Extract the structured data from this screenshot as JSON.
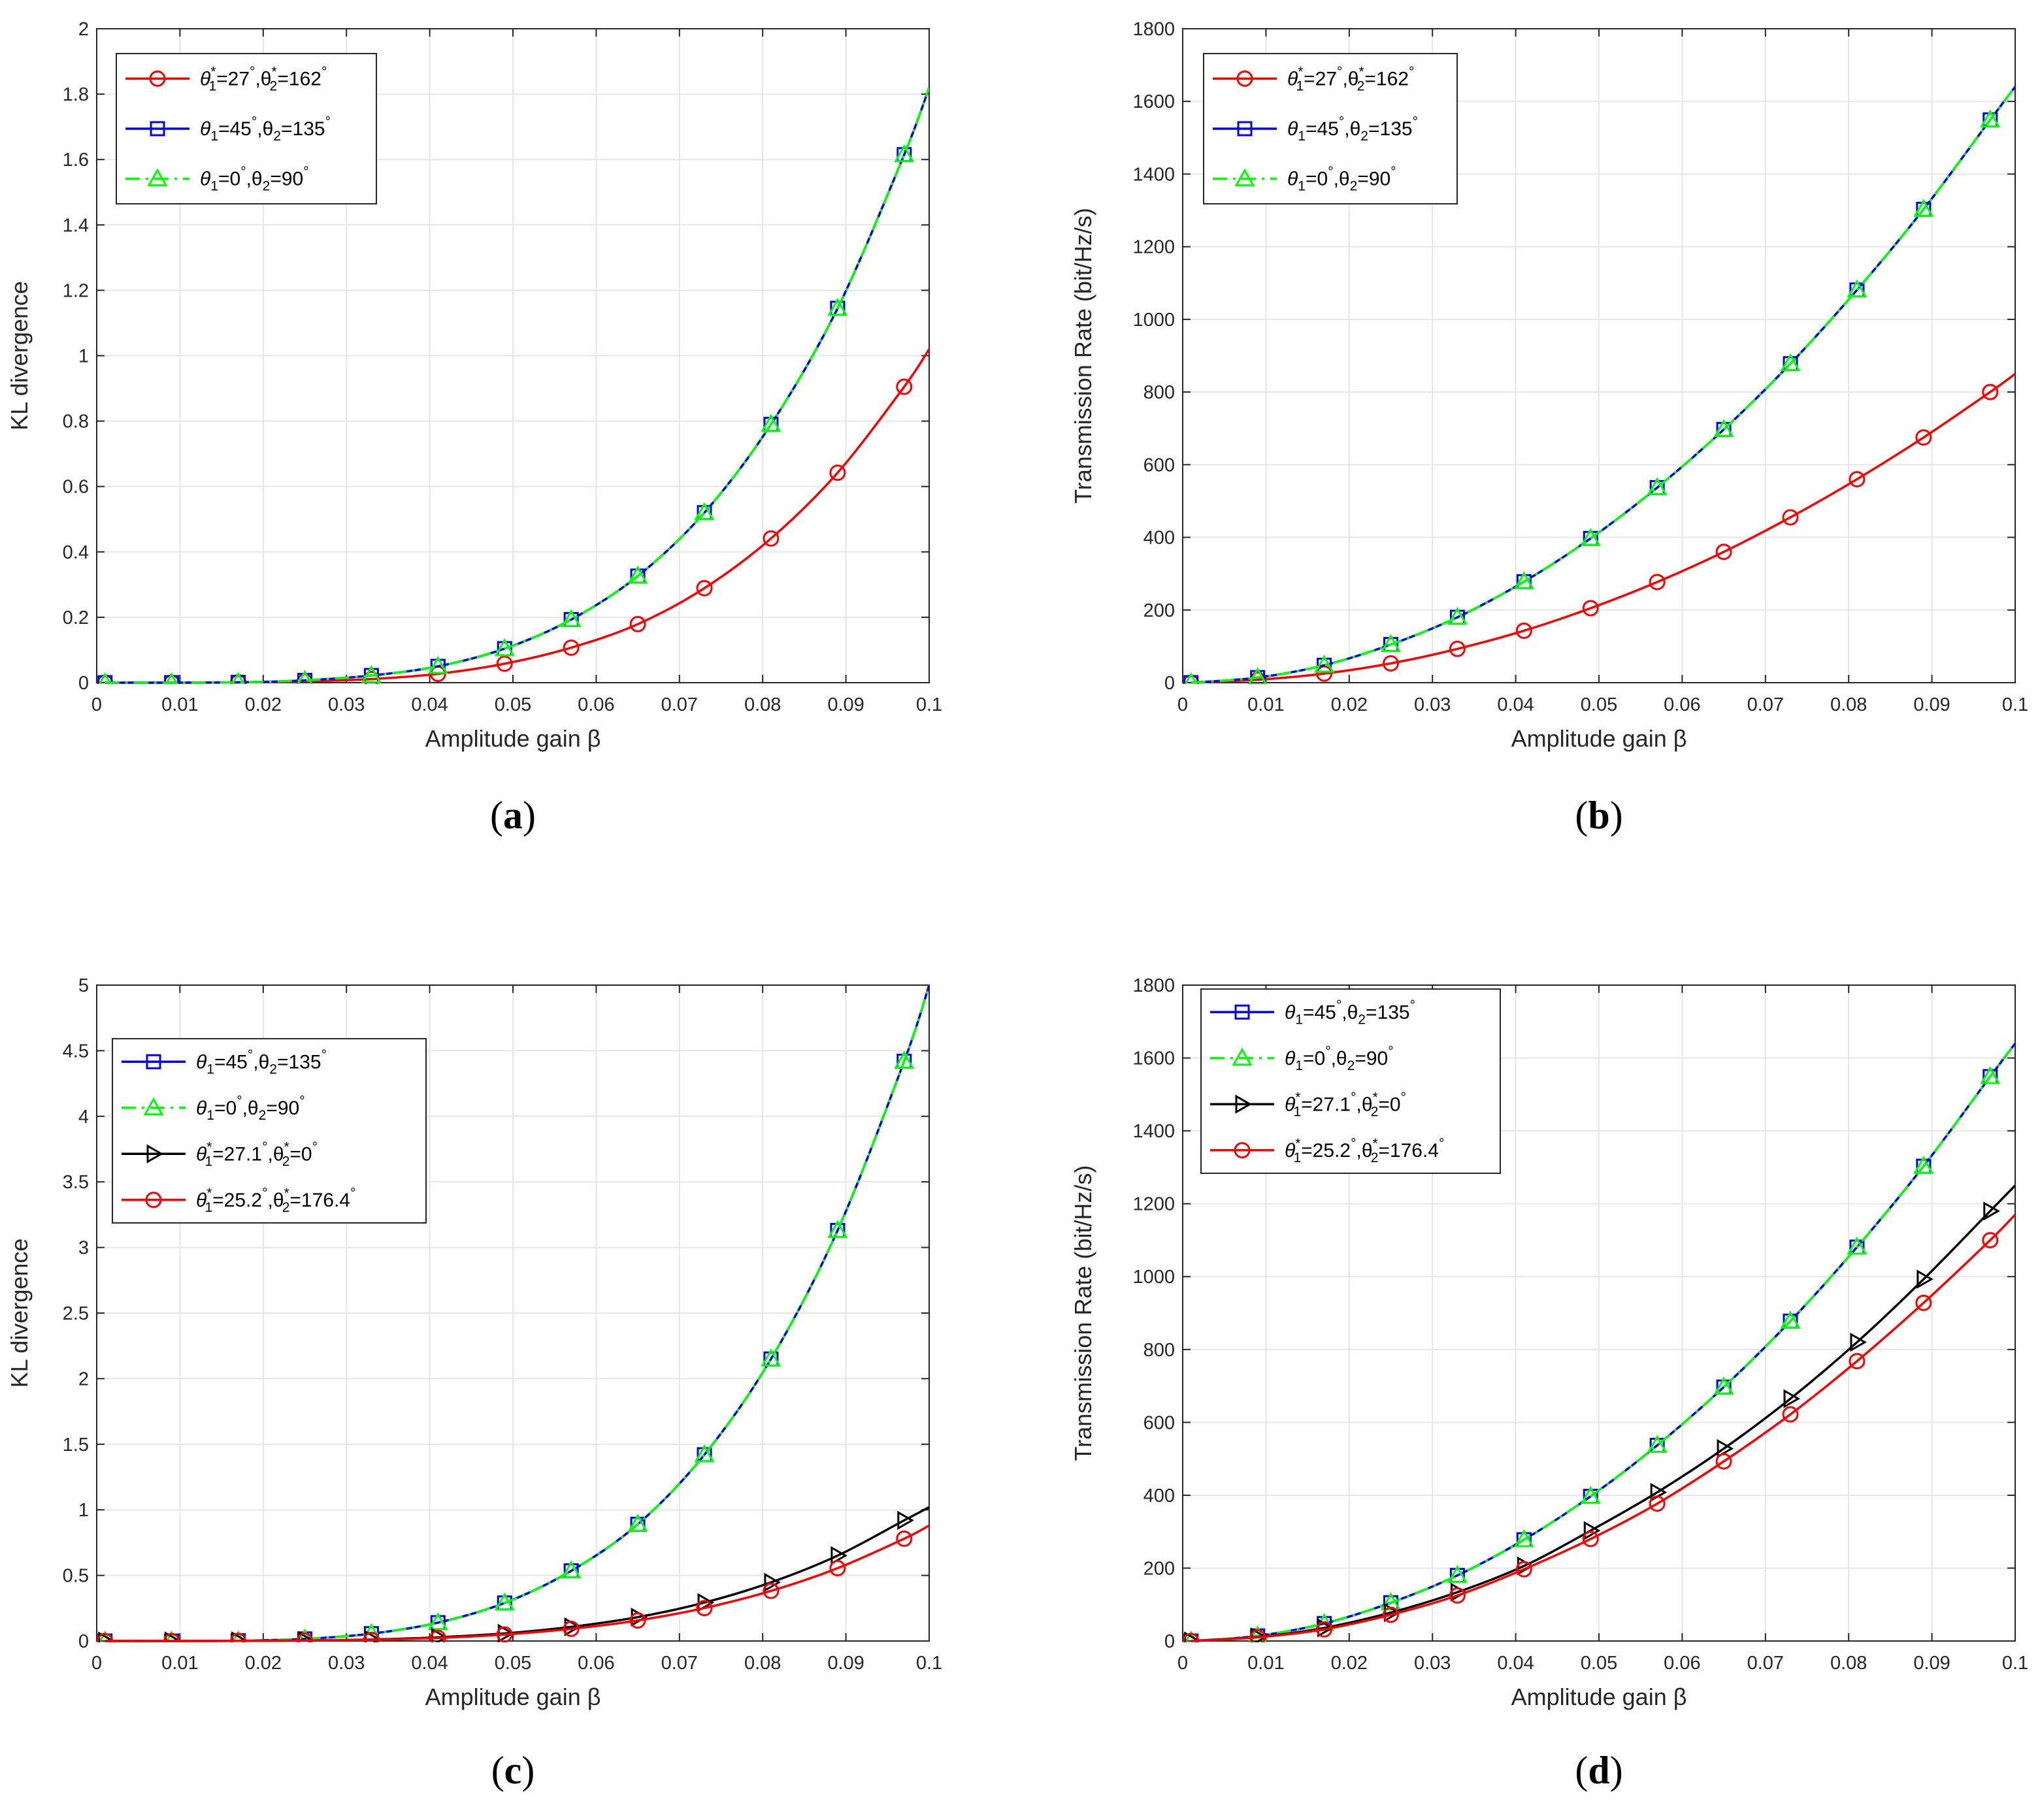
{
  "chart_data": [
    {
      "type": "line",
      "panel_label": "a",
      "x": [
        0.001,
        0.009,
        0.017,
        0.025,
        0.033,
        0.041,
        0.049,
        0.057,
        0.065,
        0.073,
        0.081,
        0.089,
        0.097
      ],
      "xlabel": "Amplitude gain β",
      "ylabel": "KL divergence",
      "xlim": [
        0,
        0.1
      ],
      "ylim": [
        0,
        2
      ],
      "xticks": [
        "0",
        "0.01",
        "0.02",
        "0.03",
        "0.04",
        "0.05",
        "0.06",
        "0.07",
        "0.08",
        "0.09",
        "0.1"
      ],
      "yticks": [
        "0",
        "0.2",
        "0.4",
        "0.6",
        "0.8",
        "1",
        "1.2",
        "1.4",
        "1.6",
        "1.8",
        "2"
      ],
      "grid": true,
      "legend_position": "top-left",
      "series": [
        {
          "name": "θ*₁=27°,θ*₂=162°",
          "legend": {
            "a": "θ",
            "a_sup": "*",
            "a_sub": "1",
            "a_val": "=27",
            "b": ",θ",
            "b_sup": "*",
            "b_sub": "2",
            "b_val": "=162"
          },
          "color": "#ff0000",
          "dash": "solid",
          "marker": "circle",
          "values": [
            0,
            0,
            0.001,
            0.004,
            0.011,
            0.027,
            0.058,
            0.107,
            0.179,
            0.289,
            0.441,
            0.642,
            0.905
          ],
          "end_value": 1.02
        },
        {
          "name": "θ₁=45°,θ₂=135°",
          "legend": {
            "a": "θ",
            "a_sup": "",
            "a_sub": "1",
            "a_val": "=45",
            "b": ",θ",
            "b_sup": "",
            "b_sub": "2",
            "b_val": "=135"
          },
          "color": "#0000ff",
          "dash": "solid",
          "marker": "square",
          "values": [
            0,
            0,
            0.001,
            0.007,
            0.022,
            0.05,
            0.104,
            0.193,
            0.326,
            0.52,
            0.79,
            1.145,
            1.615
          ],
          "end_value": 1.82
        },
        {
          "name": "θ₁=0°,θ₂=90°",
          "legend": {
            "a": "θ",
            "a_sup": "",
            "a_sub": "1",
            "a_val": "=0",
            "b": ",θ",
            "b_sup": "",
            "b_sub": "2",
            "b_val": "=90"
          },
          "color": "#00ff00",
          "dash": "dashdot",
          "marker": "triangle",
          "values": [
            0,
            0,
            0.001,
            0.007,
            0.022,
            0.05,
            0.104,
            0.193,
            0.326,
            0.52,
            0.79,
            1.145,
            1.615
          ],
          "end_value": 1.82
        }
      ]
    },
    {
      "type": "line",
      "panel_label": "b",
      "x": [
        0.001,
        0.009,
        0.017,
        0.025,
        0.033,
        0.041,
        0.049,
        0.057,
        0.065,
        0.073,
        0.081,
        0.089,
        0.097
      ],
      "xlabel": "Amplitude gain β",
      "ylabel": "Transmission Rate (bit/Hz/s)",
      "xlim": [
        0,
        0.1
      ],
      "ylim": [
        0,
        1800
      ],
      "xticks": [
        "0",
        "0.01",
        "0.02",
        "0.03",
        "0.04",
        "0.05",
        "0.06",
        "0.07",
        "0.08",
        "0.09",
        "0.1"
      ],
      "yticks": [
        "0",
        "200",
        "400",
        "600",
        "800",
        "1000",
        "1200",
        "1400",
        "1600",
        "1800"
      ],
      "grid": true,
      "legend_position": "top-left",
      "series": [
        {
          "name": "θ*₁=27°,θ*₂=162°",
          "legend": {
            "a": "θ",
            "a_sup": "*",
            "a_sub": "1",
            "a_val": "=27",
            "b": ",θ",
            "b_sup": "*",
            "b_sub": "2",
            "b_val": "=162"
          },
          "color": "#ff0000",
          "dash": "solid",
          "marker": "circle",
          "values": [
            0,
            8,
            25,
            53,
            93,
            143,
            205,
            277,
            360,
            455,
            560,
            675,
            800
          ],
          "end_value": 850
        },
        {
          "name": "θ₁=45°,θ₂=135°",
          "legend": {
            "a": "θ",
            "a_sup": "",
            "a_sub": "1",
            "a_val": "=45",
            "b": ",θ",
            "b_sup": "",
            "b_sub": "2",
            "b_val": "=135"
          },
          "color": "#0000ff",
          "dash": "solid",
          "marker": "square",
          "values": [
            0,
            14,
            48,
            105,
            180,
            278,
            397,
            537,
            697,
            878,
            1081,
            1303,
            1549
          ],
          "end_value": 1640
        },
        {
          "name": "θ₁=0°,θ₂=90°",
          "legend": {
            "a": "θ",
            "a_sup": "",
            "a_sub": "1",
            "a_val": "=0",
            "b": ",θ",
            "b_sup": "",
            "b_sub": "2",
            "b_val": "=90"
          },
          "color": "#00ff00",
          "dash": "dashdot",
          "marker": "triangle",
          "values": [
            0,
            14,
            48,
            105,
            180,
            278,
            397,
            537,
            697,
            878,
            1081,
            1303,
            1549
          ],
          "end_value": 1640
        }
      ]
    },
    {
      "type": "line",
      "panel_label": "c",
      "x": [
        0.001,
        0.009,
        0.017,
        0.025,
        0.033,
        0.041,
        0.049,
        0.057,
        0.065,
        0.073,
        0.081,
        0.089,
        0.097
      ],
      "xlabel": "Amplitude gain β",
      "ylabel": "KL divergence",
      "xlim": [
        0,
        0.1
      ],
      "ylim": [
        0,
        5
      ],
      "xticks": [
        "0",
        "0.01",
        "0.02",
        "0.03",
        "0.04",
        "0.05",
        "0.06",
        "0.07",
        "0.08",
        "0.09",
        "0.1"
      ],
      "yticks": [
        "0",
        "0.5",
        "1",
        "1.5",
        "2",
        "2.5",
        "3",
        "3.5",
        "4",
        "4.5",
        "5"
      ],
      "grid": true,
      "legend_position": "upper-left",
      "series": [
        {
          "name": "θ₁=45°,θ₂=135°",
          "legend": {
            "a": "θ",
            "a_sup": "",
            "a_sub": "1",
            "a_val": "=45",
            "b": ",θ",
            "b_sup": "",
            "b_sub": "2",
            "b_val": "=135"
          },
          "color": "#0000ff",
          "dash": "solid",
          "marker": "square",
          "values": [
            0,
            0,
            0.002,
            0.016,
            0.056,
            0.14,
            0.29,
            0.535,
            0.89,
            1.42,
            2.15,
            3.13,
            4.42
          ],
          "end_value": 5.0
        },
        {
          "name": "θ₁=0°,θ₂=90°",
          "legend": {
            "a": "θ",
            "a_sup": "",
            "a_sub": "1",
            "a_val": "=0",
            "b": ",θ",
            "b_sup": "",
            "b_sub": "2",
            "b_val": "=90"
          },
          "color": "#00ff00",
          "dash": "dashdot",
          "marker": "triangle",
          "values": [
            0,
            0,
            0.002,
            0.016,
            0.056,
            0.14,
            0.29,
            0.535,
            0.89,
            1.42,
            2.15,
            3.13,
            4.42
          ],
          "end_value": 5.0
        },
        {
          "name": "θ*₁=27.1°,θ*₂=0°",
          "legend": {
            "a": "θ",
            "a_sup": "*",
            "a_sub": "1",
            "a_val": "=27.1",
            "b": ",θ",
            "b_sup": "*",
            "b_sub": "2",
            "b_val": "=0"
          },
          "color": "#000000",
          "dash": "solid",
          "marker": "triangle-right",
          "values": [
            0,
            0,
            0.001,
            0.004,
            0.011,
            0.028,
            0.058,
            0.108,
            0.182,
            0.293,
            0.447,
            0.651,
            0.92
          ],
          "end_value": 1.02
        },
        {
          "name": "θ*₁=25.2°,θ*₂=176.4°",
          "legend": {
            "a": "θ",
            "a_sup": "*",
            "a_sub": "1",
            "a_val": "=25.2",
            "b": ",θ",
            "b_sup": "*",
            "b_sub": "2",
            "b_val": "=176.4"
          },
          "color": "#ff0000",
          "dash": "solid",
          "marker": "circle",
          "values": [
            0,
            0,
            0.001,
            0.003,
            0.009,
            0.023,
            0.05,
            0.093,
            0.157,
            0.251,
            0.382,
            0.555,
            0.78
          ],
          "end_value": 0.88
        }
      ]
    },
    {
      "type": "line",
      "panel_label": "d",
      "x": [
        0.001,
        0.009,
        0.017,
        0.025,
        0.033,
        0.041,
        0.049,
        0.057,
        0.065,
        0.073,
        0.081,
        0.089,
        0.097
      ],
      "xlabel": "Amplitude gain β",
      "ylabel": "Transmission Rate (bit/Hz/s)",
      "xlim": [
        0,
        0.1
      ],
      "ylim": [
        0,
        1800
      ],
      "xticks": [
        "0",
        "0.01",
        "0.02",
        "0.03",
        "0.04",
        "0.05",
        "0.06",
        "0.07",
        "0.08",
        "0.09",
        "0.1"
      ],
      "yticks": [
        "0",
        "200",
        "400",
        "600",
        "800",
        "1000",
        "1200",
        "1400",
        "1600",
        "1800"
      ],
      "grid": true,
      "legend_position": "top-left",
      "series": [
        {
          "name": "θ₁=45°,θ₂=135°",
          "legend": {
            "a": "θ",
            "a_sup": "",
            "a_sub": "1",
            "a_val": "=45",
            "b": ",θ",
            "b_sup": "",
            "b_sub": "2",
            "b_val": "=135"
          },
          "color": "#0000ff",
          "dash": "solid",
          "marker": "square",
          "values": [
            0,
            14,
            48,
            105,
            180,
            278,
            397,
            537,
            697,
            878,
            1081,
            1303,
            1549
          ],
          "end_value": 1640
        },
        {
          "name": "θ₁=0°,θ₂=90°",
          "legend": {
            "a": "θ",
            "a_sup": "",
            "a_sub": "1",
            "a_val": "=0",
            "b": ",θ",
            "b_sup": "",
            "b_sub": "2",
            "b_val": "=90"
          },
          "color": "#00ff00",
          "dash": "dashdot",
          "marker": "triangle",
          "values": [
            0,
            14,
            48,
            105,
            180,
            278,
            397,
            537,
            697,
            878,
            1081,
            1303,
            1549
          ],
          "end_value": 1640
        },
        {
          "name": "θ*₁=27.1°,θ*₂=0°",
          "legend": {
            "a": "θ",
            "a_sup": "*",
            "a_sub": "1",
            "a_val": "=27.1",
            "b": ",θ",
            "b_sup": "*",
            "b_sub": "2",
            "b_val": "=0"
          },
          "color": "#000000",
          "dash": "solid",
          "marker": "triangle-right",
          "values": [
            0,
            11,
            36,
            78,
            134,
            206,
            303,
            408,
            528,
            665,
            820,
            993,
            1180
          ],
          "end_value": 1250
        },
        {
          "name": "θ*₁=25.2°,θ*₂=176.4°",
          "legend": {
            "a": "θ",
            "a_sup": "*",
            "a_sub": "1",
            "a_val": "=25.2",
            "b": ",θ",
            "b_sup": "*",
            "b_sub": "2",
            "b_val": "=176.4"
          },
          "color": "#ff0000",
          "dash": "solid",
          "marker": "circle",
          "values": [
            0,
            10,
            32,
            72,
            125,
            197,
            280,
            377,
            493,
            622,
            768,
            928,
            1100
          ],
          "end_value": 1170
        }
      ]
    }
  ]
}
